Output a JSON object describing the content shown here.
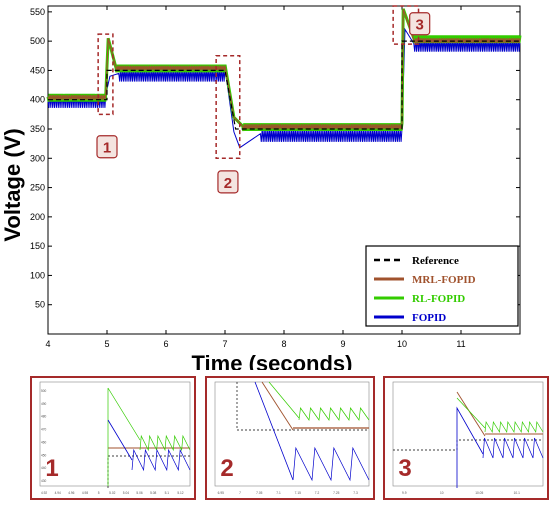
{
  "chart_data": {
    "type": "line",
    "title": "",
    "xlabel": "Time (seconds)",
    "ylabel": "Voltage (V)",
    "xlim": [
      4,
      12
    ],
    "ylim": [
      0,
      560
    ],
    "x_ticks": [
      4,
      5,
      6,
      7,
      8,
      9,
      10,
      11
    ],
    "y_ticks": [
      50,
      100,
      150,
      200,
      250,
      300,
      350,
      400,
      450,
      500,
      550
    ],
    "grid": false,
    "legend_position": "bottom-right",
    "series": [
      {
        "name": "Reference",
        "style": "dashed",
        "color": "#000000",
        "x": [
          4,
          5,
          5,
          7,
          7.18,
          10,
          10,
          12
        ],
        "y": [
          400,
          400,
          450,
          450,
          350,
          350,
          500,
          500
        ]
      },
      {
        "name": "MRL-FOPID",
        "style": "solid",
        "color": "#a0522d",
        "x": [
          4,
          4.98,
          5.02,
          5.15,
          7,
          7.15,
          7.3,
          10,
          10.02,
          10.2,
          12
        ],
        "y": [
          405,
          405,
          505,
          455,
          455,
          370,
          355,
          355,
          555,
          502,
          502
        ]
      },
      {
        "name": "RL-FOPID",
        "style": "solid",
        "color": "#33cc00",
        "x": [
          4,
          4.98,
          5.02,
          5.15,
          7,
          7.15,
          7.3,
          10,
          10.02,
          10.2,
          12
        ],
        "y": [
          405,
          405,
          505,
          455,
          455,
          370,
          355,
          355,
          555,
          505,
          505
        ]
      },
      {
        "name": "FOPID",
        "style": "solid",
        "color": "#0000cc",
        "x": [
          4,
          4.98,
          5.05,
          5.2,
          7,
          7.15,
          7.25,
          7.6,
          10,
          10.05,
          10.2,
          12
        ],
        "y": [
          400,
          400,
          440,
          445,
          445,
          345,
          318,
          342,
          342,
          520,
          496,
          496
        ]
      }
    ],
    "annotations": [
      "1",
      "2",
      "3"
    ]
  },
  "legend": {
    "items": [
      {
        "label": "Reference",
        "color": "#000000",
        "style": "dashed"
      },
      {
        "label": "MRL-FOPID",
        "color": "#a0522d",
        "style": "solid"
      },
      {
        "label": "RL-FOPID",
        "color": "#33cc00",
        "style": "solid"
      },
      {
        "label": "FOPID",
        "color": "#0000cc",
        "style": "solid"
      }
    ]
  },
  "zoom_labels": [
    "1",
    "2",
    "3"
  ],
  "insets": [
    {
      "label": "1",
      "x_ticks": [
        "4.92",
        "4.94",
        "4.96",
        "4.98",
        "5",
        "5.02",
        "5.04",
        "5.06",
        "5.08",
        "5.1",
        "5.12"
      ],
      "y_ticks": [
        "500",
        "490",
        "480",
        "470",
        "460",
        "450",
        "440",
        "430"
      ]
    },
    {
      "label": "2",
      "x_ticks": [
        "6.95",
        "7",
        "7.05",
        "7.1",
        "7.15",
        "7.2",
        "7.25",
        "7.3"
      ],
      "y_ticks": []
    },
    {
      "label": "3",
      "x_ticks": [
        "9.9",
        "10",
        "10.05",
        "10.1"
      ],
      "y_ticks": []
    }
  ]
}
